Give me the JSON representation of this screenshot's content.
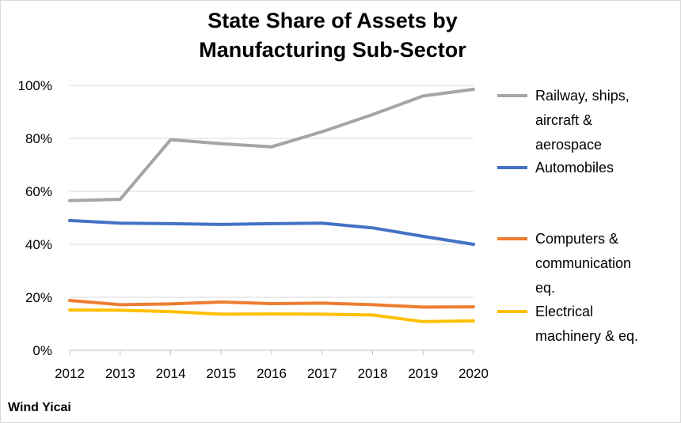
{
  "chart_data": {
    "type": "line",
    "title_lines": [
      "State Share of Assets by",
      "Manufacturing Sub-Sector"
    ],
    "x": [
      "2012",
      "2013",
      "2014",
      "2015",
      "2016",
      "2017",
      "2018",
      "2019",
      "2020"
    ],
    "y_ticks": [
      "0%",
      "20%",
      "40%",
      "60%",
      "80%",
      "100%"
    ],
    "ylim": [
      0,
      100
    ],
    "grid": true,
    "legend_position": "right",
    "series": [
      {
        "name_lines": [
          "Railway, ships,",
          "aircraft &",
          "aerospace"
        ],
        "color": "#a5a5a5",
        "values": [
          56.5,
          57,
          79.5,
          78,
          76.8,
          82.5,
          89,
          96,
          98.5
        ]
      },
      {
        "name_lines": [
          "Automobiles"
        ],
        "color": "#4472c4",
        "values": [
          49,
          48,
          47.8,
          47.5,
          47.8,
          48,
          46.2,
          43,
          40
        ]
      },
      {
        "name_lines": [
          " Computers &",
          "communication",
          "eq."
        ],
        "color": "#ed7d31",
        "values": [
          18.8,
          17.2,
          17.5,
          18.2,
          17.6,
          17.8,
          17.2,
          16.3,
          16.4
        ]
      },
      {
        "name_lines": [
          "Electrical",
          "machinery & eq."
        ],
        "color": "#ffc000",
        "values": [
          15.2,
          15.1,
          14.6,
          13.6,
          13.7,
          13.6,
          13.3,
          10.8,
          11.1
        ]
      }
    ],
    "source": "Wind Yicai"
  }
}
